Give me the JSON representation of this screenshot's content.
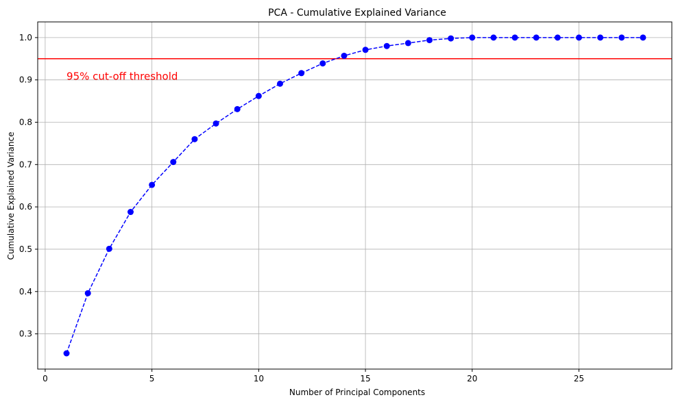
{
  "chart_data": {
    "type": "line",
    "title": "PCA - Cumulative Explained Variance",
    "xlabel": "Number of Principal Components",
    "ylabel": "Cumulative Explained Variance",
    "xlim": [
      -0.35,
      29.35
    ],
    "ylim": [
      0.2168,
      1.037
    ],
    "xticks": [
      0,
      5,
      10,
      15,
      20,
      25
    ],
    "yticks": [
      0.3,
      0.4,
      0.5,
      0.6,
      0.7,
      0.8,
      0.9,
      1.0
    ],
    "xtick_labels": [
      "0",
      "5",
      "10",
      "15",
      "20",
      "25"
    ],
    "ytick_labels": [
      "0.3",
      "0.4",
      "0.5",
      "0.6",
      "0.7",
      "0.8",
      "0.9",
      "1.0"
    ],
    "grid": true,
    "series": [
      {
        "color": "#0000ff",
        "line_style": "dashed",
        "marker": "circle",
        "x": [
          1,
          2,
          3,
          4,
          5,
          6,
          7,
          8,
          9,
          10,
          11,
          12,
          13,
          14,
          15,
          16,
          17,
          18,
          19,
          20,
          21,
          22,
          23,
          24,
          25,
          26,
          27,
          28
        ],
        "values": [
          0.254,
          0.396,
          0.501,
          0.588,
          0.652,
          0.706,
          0.76,
          0.797,
          0.831,
          0.862,
          0.891,
          0.916,
          0.939,
          0.957,
          0.971,
          0.98,
          0.987,
          0.994,
          0.998,
          1.0,
          1.0,
          1.0,
          1.0,
          1.0,
          1.0,
          1.0,
          1.0,
          1.0
        ]
      }
    ],
    "threshold": {
      "y": 0.95,
      "color": "#ff0000",
      "label": "95% cut-off threshold",
      "label_x": 1,
      "label_y": 0.9
    }
  }
}
